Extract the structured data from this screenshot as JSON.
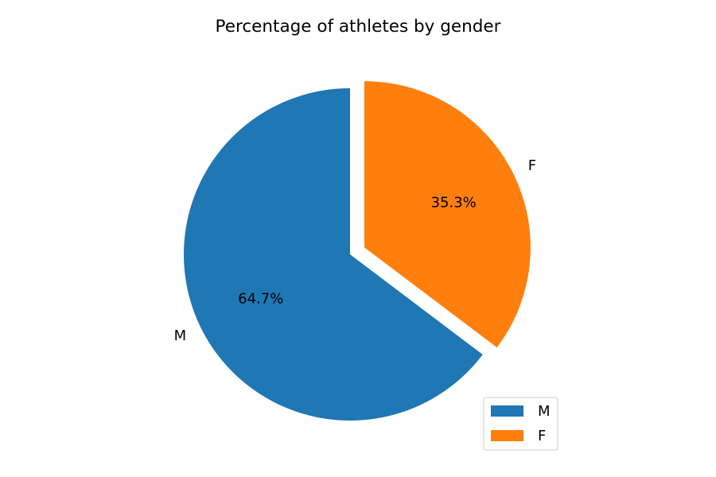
{
  "chart_data": {
    "type": "pie",
    "title": "Percentage of athletes by gender",
    "labels": [
      "M",
      "F"
    ],
    "values": [
      64.7,
      35.3
    ],
    "value_labels": [
      "64.7%",
      "35.3%"
    ],
    "colors": [
      "#1f77b4",
      "#ff7f0e"
    ],
    "exploded": [
      false,
      true
    ],
    "legend": {
      "placement": "bottom-right",
      "entries": [
        "M",
        "F"
      ]
    }
  }
}
